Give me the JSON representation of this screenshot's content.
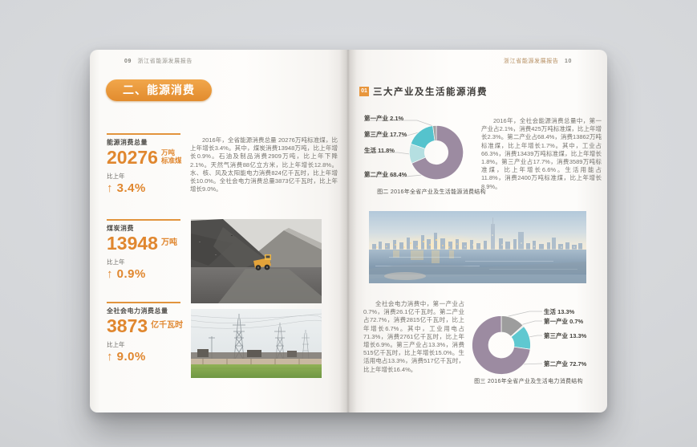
{
  "colors": {
    "accent_orange": "#e8963c",
    "number_orange": "#e0872f",
    "donut_mauve": "#9c8ba1",
    "donut_teal": "#55c3cd",
    "donut_pale_teal": "#b5dfe1",
    "donut_gray": "#9d9d9d",
    "donut_pale_sliver": "#dcdcdc"
  },
  "left_page": {
    "header": {
      "page_num": "09",
      "report_title": "浙江省能源发展报告"
    },
    "section_title": "二、能源消费",
    "intro_paragraph": "2016年，全省能源消费总量 20276万吨标准煤，比上年增长3.4%。其中，煤炭消费13948万吨，比上年增长0.9%。石油及制品消费2909万吨，比上年下降2.1%。天然气消费88亿立方米，比上年增长12.8%。水、核、风及太阳能电力消费824亿千瓦时，比上年增长10.0%。全社会电力消费总量3873亿千瓦时，比上年增长9.0%。",
    "stats": [
      {
        "label": "能源消费总量",
        "value": "20276",
        "unit_line1": "万吨",
        "unit_line2": "标准煤",
        "compare_label": "比上年",
        "change": "↑ 3.4%"
      },
      {
        "label": "煤炭消费",
        "value": "13948",
        "unit_line1": "万吨",
        "unit_line2": "",
        "compare_label": "比上年",
        "change": "↑ 0.9%"
      },
      {
        "label": "全社会电力消费总量",
        "value": "3873",
        "unit_line1": "亿千瓦时",
        "unit_line2": "",
        "compare_label": "比上年",
        "change": "↑ 9.0%"
      }
    ],
    "photos": [
      {
        "name": "coal-mine-dump-truck"
      },
      {
        "name": "power-transmission-pylons"
      }
    ]
  },
  "right_page": {
    "header": {
      "report_title": "浙江省能源发展报告",
      "page_num": "10"
    },
    "section_badge": "01",
    "section_title": "三大产业及生活能源消费",
    "energy_paragraph": "2016年，全社会能源消费总量中，第一产业占2.1%，消费425万吨标准煤，比上年增长2.3%。第二产业占68.4%，消费13862万吨标准煤，比上年增长1.7%。其中，工业占66.3%，消费13439万吨标准煤，比上年增长1.8%。第三产业占17.7%，消费3589万吨标准煤，比上年增长6.6%。生活用能占11.8%，消费2400万吨标准煤，比上年增长8.9%。",
    "power_paragraph": "全社会电力消费中，第一产业占0.7%，消费26.1亿千瓦时。第二产业占72.7%，消费2815亿千瓦时，比上年增长6.7%。其中，工业用电占71.3%，消费2761亿千瓦时，比上年增长6.9%。第三产业占13.3%，消费515亿千瓦时，比上年增长15.0%。生活用电占13.3%，消费517亿千瓦时，比上年增长16.4%。",
    "photo": {
      "name": "city-skyline-panorama"
    }
  },
  "chart_data": [
    {
      "type": "pie",
      "subtype": "donut",
      "title": "图二 2016年全省产业及生活能源消费结构",
      "start_angle_deg": 0,
      "direction": "clockwise",
      "outer_radius": 48,
      "inner_radius": 21,
      "slices": [
        {
          "label": "第二产业",
          "value": 68.4,
          "color": "#9c8ba1"
        },
        {
          "label": "生活",
          "value": 11.8,
          "color": "#b5dfe1"
        },
        {
          "label": "第三产业",
          "value": 17.7,
          "color": "#55c3cd"
        },
        {
          "label": "第一产业",
          "value": 2.1,
          "color": "#a3a3a3"
        }
      ],
      "legend": [
        {
          "text": "第一产业 2.1%"
        },
        {
          "text": "第三产业 17.7%"
        },
        {
          "text": "生活 11.8%"
        },
        {
          "text": "第二产业 68.4%"
        }
      ]
    },
    {
      "type": "pie",
      "subtype": "donut",
      "title": "图三 2016年全省产业及生活电力消费结构",
      "start_angle_deg": 0,
      "direction": "clockwise",
      "outer_radius": 48,
      "inner_radius": 21,
      "slices": [
        {
          "label": "生活",
          "value": 13.3,
          "color": "#9d9d9d"
        },
        {
          "label": "第一产业",
          "value": 0.7,
          "color": "#dcdcdc"
        },
        {
          "label": "第三产业",
          "value": 13.3,
          "color": "#5fc8d0"
        },
        {
          "label": "第二产业",
          "value": 72.7,
          "color": "#9c8ba1"
        }
      ],
      "legend": [
        {
          "text": "生活 13.3%"
        },
        {
          "text": "第一产业 0.7%"
        },
        {
          "text": "第三产业 13.3%"
        },
        {
          "text": "第二产业 72.7%"
        }
      ]
    }
  ]
}
